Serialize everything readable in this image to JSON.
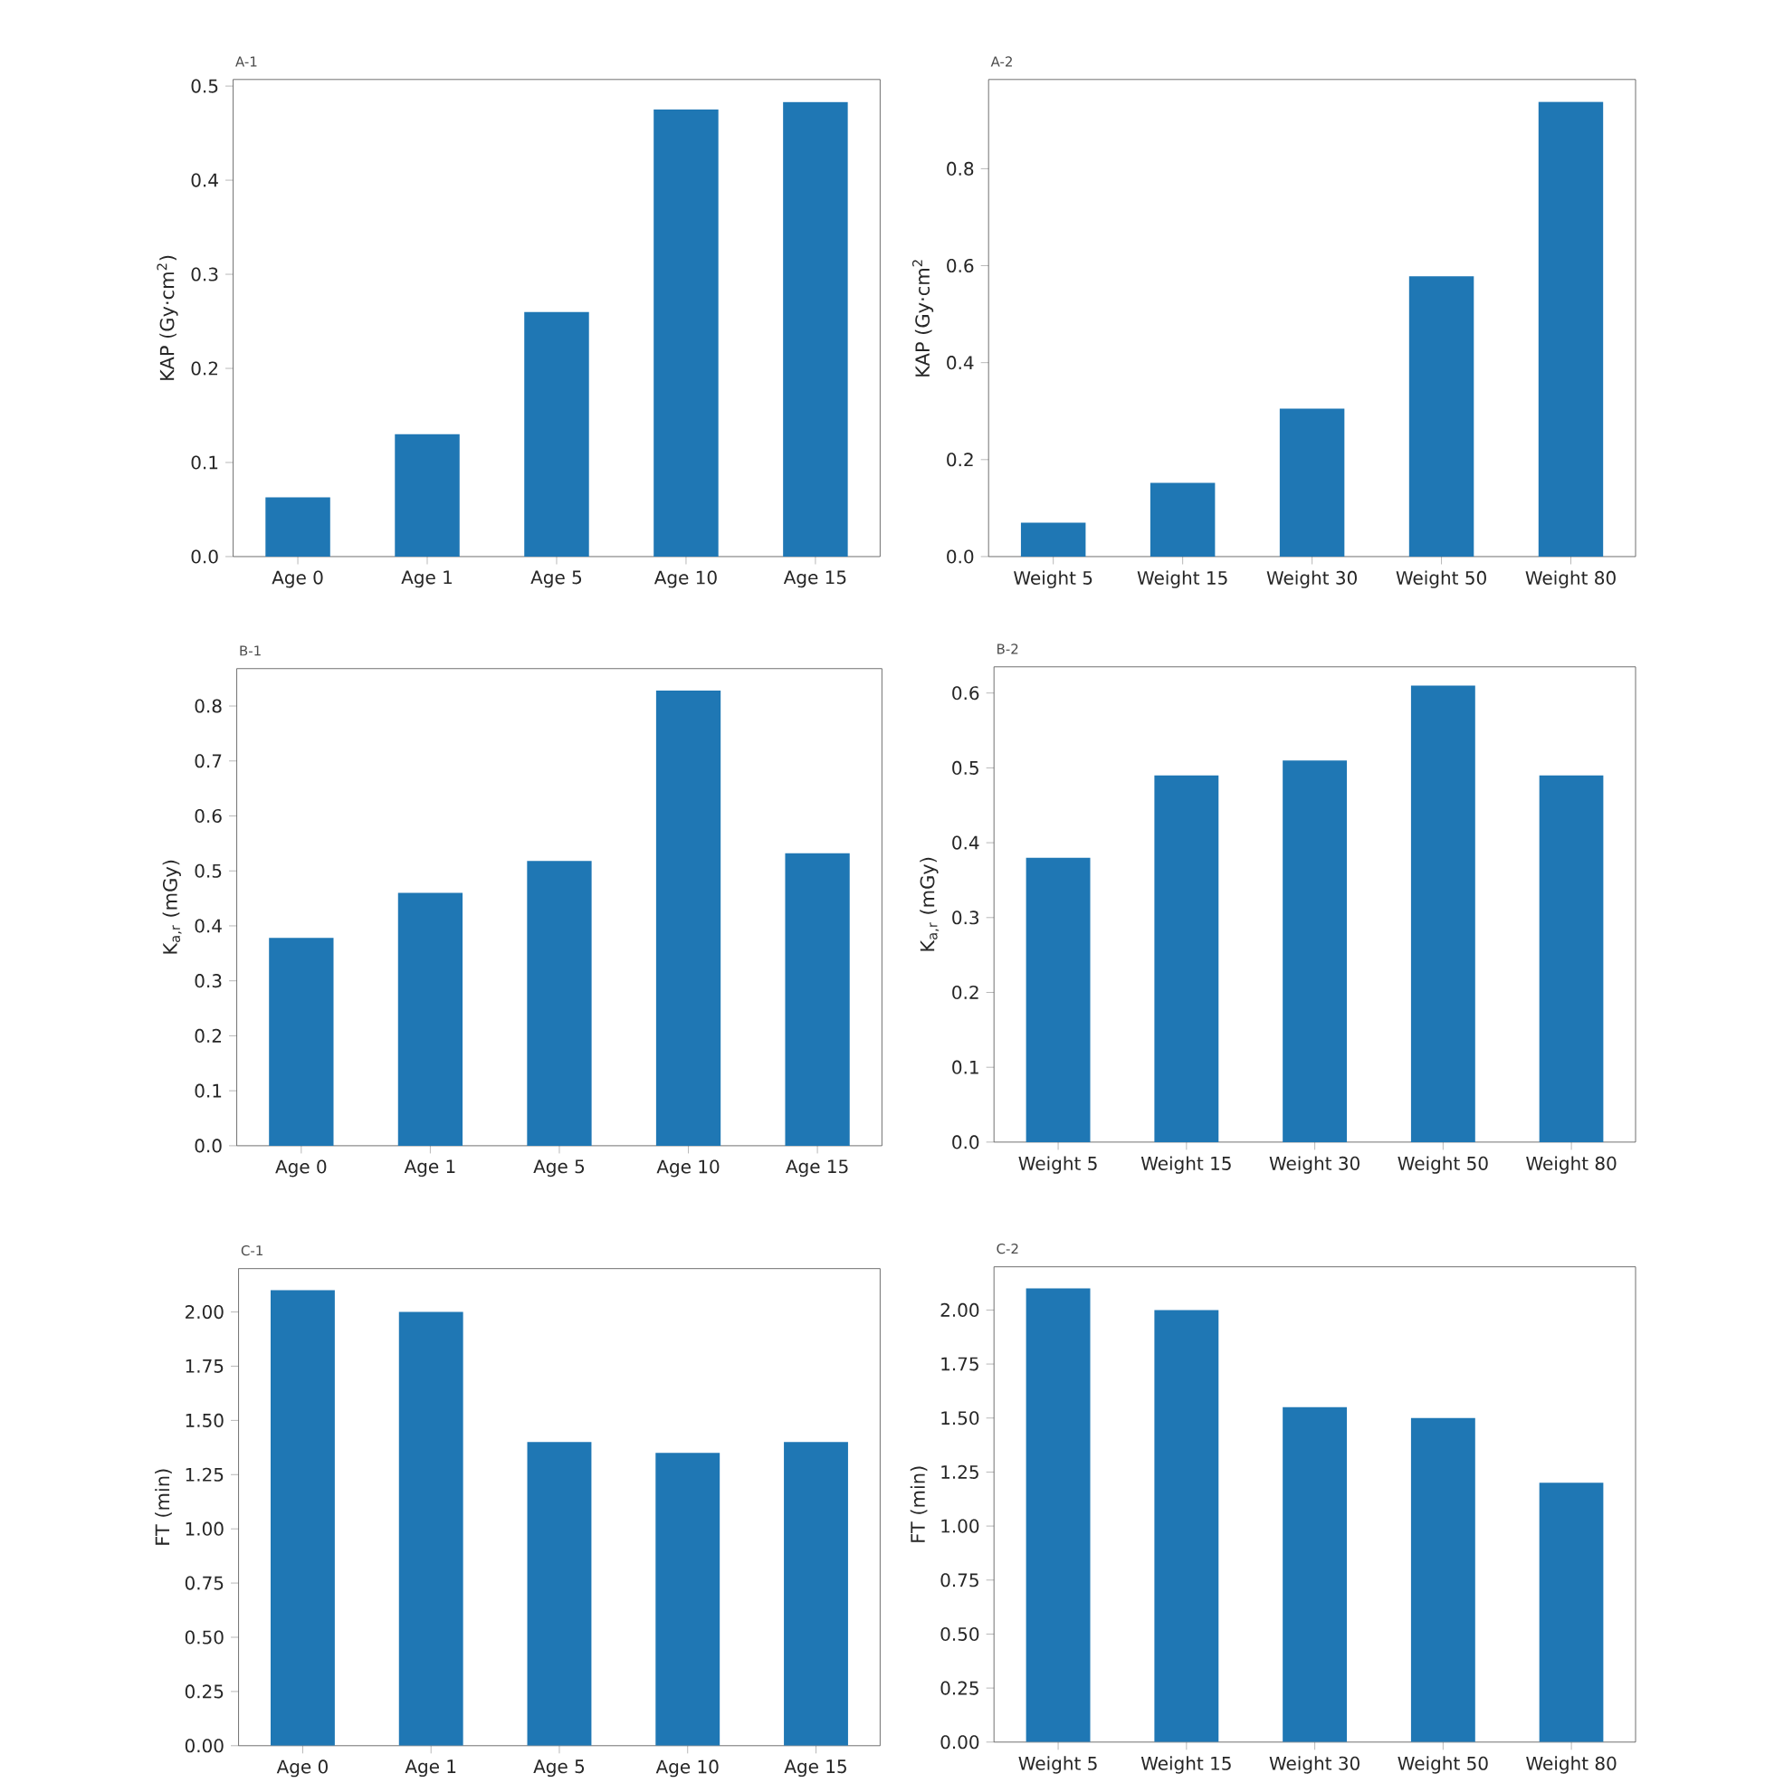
{
  "chart_data": [
    {
      "type": "bar",
      "title": "A-1",
      "ylabel": "KAP (Gy·cm$^{2}$)",
      "categories": [
        "Age 0",
        "Age 1",
        "Age 5",
        "Age 10",
        "Age 15"
      ],
      "values": [
        0.063,
        0.13,
        0.26,
        0.475,
        0.483
      ],
      "color": "#1f77b4",
      "ylim": [
        0,
        0.507
      ],
      "yticks": [
        {
          "value": 0,
          "label": "0.0"
        },
        0.1,
        0.2,
        0.3,
        0.4,
        0.5
      ]
    },
    {
      "type": "bar",
      "title": "A-2",
      "ylabel": "KAP (Gy·cm$^{2}$",
      "categories": [
        "Weight 5",
        "Weight 15",
        "Weight 30",
        "Weight 50",
        "Weight 80"
      ],
      "values": [
        0.07,
        0.152,
        0.305,
        0.578,
        0.938
      ],
      "color": "#1f77b4",
      "ylim": [
        0,
        0.984
      ],
      "yticks": [
        {
          "value": 0,
          "label": "0.0"
        },
        0.2,
        0.4,
        0.6,
        0.8
      ]
    },
    {
      "type": "bar",
      "title": "B-1",
      "ylabel": "K$_{a,r}$ (mGy)",
      "categories": [
        "Age 0",
        "Age 1",
        "Age 5",
        "Age 10",
        "Age 15"
      ],
      "values": [
        0.378,
        0.46,
        0.518,
        0.828,
        0.532
      ],
      "color": "#1f77b4",
      "ylim": [
        0,
        0.868
      ],
      "yticks": [
        {
          "value": 0,
          "label": "0.0"
        },
        0.1,
        0.2,
        0.3,
        0.4,
        0.5,
        0.6,
        0.7,
        0.8
      ]
    },
    {
      "type": "bar",
      "title": "B-2",
      "ylabel": "K$_{a,r}$ (mGy)",
      "categories": [
        "Weight 5",
        "Weight 15",
        "Weight 30",
        "Weight 50",
        "Weight 80"
      ],
      "values": [
        0.38,
        0.49,
        0.51,
        0.61,
        0.49
      ],
      "color": "#1f77b4",
      "ylim": [
        0,
        0.635
      ],
      "yticks": [
        {
          "value": 0,
          "label": "0.0"
        },
        0.1,
        0.2,
        0.3,
        0.4,
        0.5,
        0.6
      ]
    },
    {
      "type": "bar",
      "title": "C-1",
      "ylabel": "FT (min)",
      "categories": [
        "Age 0",
        "Age 1",
        "Age 5",
        "Age 10",
        "Age 15"
      ],
      "values": [
        2.1,
        2.0,
        1.4,
        1.35,
        1.4
      ],
      "color": "#1f77b4",
      "ylim": [
        0,
        2.2
      ],
      "yticks": [
        {
          "value": 0,
          "label": "0.00"
        },
        0.25,
        {
          "value": 0.5,
          "label": "0.50"
        },
        0.75,
        {
          "value": 1,
          "label": "1.00"
        },
        1.25,
        {
          "value": 1.5,
          "label": "1.50"
        },
        1.75,
        {
          "value": 2,
          "label": "2.00"
        }
      ]
    },
    {
      "type": "bar",
      "title": "C-2",
      "ylabel": "FT (min)",
      "categories": [
        "Weight 5",
        "Weight 15",
        "Weight 30",
        "Weight 50",
        "Weight 80"
      ],
      "values": [
        2.1,
        2.0,
        1.55,
        1.5,
        1.2
      ],
      "color": "#1f77b4",
      "ylim": [
        0,
        2.2
      ],
      "yticks": [
        {
          "value": 0,
          "label": "0.00"
        },
        0.25,
        {
          "value": 0.5,
          "label": "0.50"
        },
        0.75,
        {
          "value": 1,
          "label": "1.00"
        },
        1.25,
        {
          "value": 1.5,
          "label": "1.50"
        },
        1.75,
        {
          "value": 2,
          "label": "2.00"
        }
      ]
    }
  ]
}
